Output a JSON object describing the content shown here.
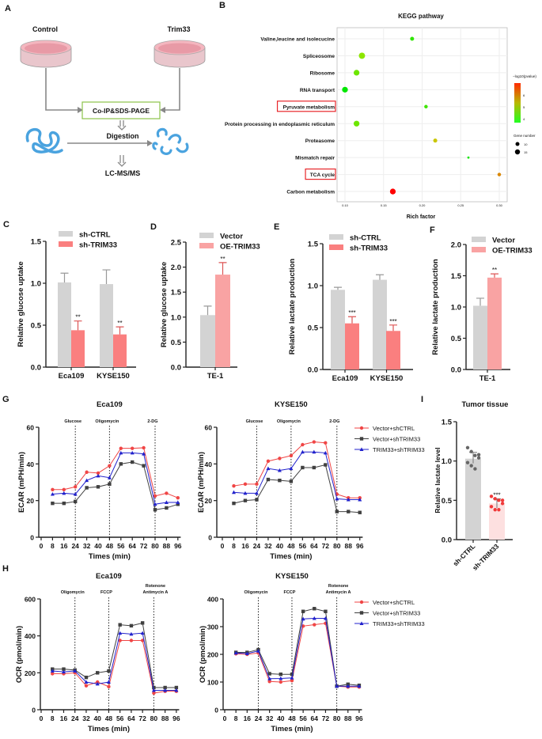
{
  "panel_labels": {
    "A": "A",
    "B": "B",
    "C": "C",
    "D": "D",
    "E": "E",
    "F": "F",
    "G": "G",
    "H": "H",
    "I": "I"
  },
  "panel_a": {
    "control": "Control",
    "trim33": "Trim33",
    "box": "Co-IP&SDS-PAGE",
    "digestion": "Digestion",
    "lcms": "LC-MS/MS"
  },
  "colors": {
    "gray_bar": "#d3d3d3",
    "red_bar": "#fa7f7f",
    "pink_bar": "#f9a3a3",
    "red_line": "#f04545",
    "gray_line": "#404040",
    "blue_line": "#2222cc",
    "highlight": "#e8262a"
  },
  "chart_data": [
    {
      "type": "scatter",
      "title": "KEGG pathway",
      "xlabel": "Rich factor",
      "categories": [
        "Valine,leucine and isolecucine",
        "Spliceosome",
        "Ribosome",
        "RNA transport",
        "Pyruvate metabolism",
        "Protein processing in endoplasmic reticulum",
        "Proteasome",
        "Mismatch repair",
        "TCA cycle",
        "Carbon metabolism"
      ],
      "rich_factor": [
        0.187,
        0.122,
        0.115,
        0.1,
        0.205,
        0.115,
        0.217,
        0.26,
        0.3,
        0.162
      ],
      "neg_log10_pvalue": [
        4.0,
        4.6,
        4.4,
        3.7,
        4.1,
        4.4,
        5.0,
        3.8,
        5.6,
        6.9
      ],
      "gene_number": [
        9,
        14,
        13,
        13,
        8,
        13,
        9,
        5,
        8,
        13
      ],
      "highlighted": [
        "Pyruvate metabolism",
        "TCA cycle"
      ],
      "xlim": [
        0.09,
        0.305
      ],
      "xticks": [
        "0.10",
        "0.15",
        "0.20",
        "0.25",
        "0.30"
      ],
      "color_legend_title": "−log10(pvalue)",
      "color_ticks": [
        "6",
        "5",
        "4"
      ],
      "size_legend_title": "Gene number",
      "size_ticks": [
        "10",
        "15"
      ],
      "grid": true
    },
    {
      "type": "bar",
      "ylabel": "Relative glucose uptake",
      "categories": [
        "Eca109",
        "KYSE150"
      ],
      "ylim": [
        0,
        1.5
      ],
      "yticks": [
        "0.0",
        "0.5",
        "1.0",
        "1.5"
      ],
      "series": [
        {
          "name": "sh-CTRL",
          "values": [
            1.01,
            0.99
          ],
          "errors": [
            0.11,
            0.17
          ]
        },
        {
          "name": "sh-TRIM33",
          "values": [
            0.44,
            0.39
          ],
          "errors": [
            0.11,
            0.09
          ]
        }
      ],
      "significance": [
        "**",
        "**"
      ]
    },
    {
      "type": "bar",
      "ylabel": "Relative glucose uptake",
      "categories": [
        "TE-1"
      ],
      "ylim": [
        0,
        2.5
      ],
      "yticks": [
        "0.0",
        "0.5",
        "1.0",
        "1.5",
        "2.0",
        "2.5"
      ],
      "series": [
        {
          "name": "Vector",
          "values": [
            1.04
          ],
          "errors": [
            0.18
          ]
        },
        {
          "name": "OE-TRIM33",
          "values": [
            1.85
          ],
          "errors": [
            0.24
          ]
        }
      ],
      "significance": [
        "**"
      ]
    },
    {
      "type": "bar",
      "ylabel": "Relative lactate production",
      "categories": [
        "Eca109",
        "KYSE150"
      ],
      "ylim": [
        0,
        1.5
      ],
      "yticks": [
        "0.0",
        "0.5",
        "1.0",
        "1.5"
      ],
      "series": [
        {
          "name": "sh-CTRL",
          "values": [
            0.95,
            1.07
          ],
          "errors": [
            0.03,
            0.06
          ]
        },
        {
          "name": "sh-TRIM33",
          "values": [
            0.55,
            0.46
          ],
          "errors": [
            0.08,
            0.07
          ]
        }
      ],
      "significance": [
        "***",
        "***"
      ]
    },
    {
      "type": "bar",
      "ylabel": "Relative lactate production",
      "categories": [
        "TE-1"
      ],
      "ylim": [
        0,
        2.0
      ],
      "yticks": [
        "0.0",
        "0.5",
        "1.0",
        "1.5",
        "2.0"
      ],
      "series": [
        {
          "name": "Vector",
          "values": [
            1.02
          ],
          "errors": [
            0.12
          ]
        },
        {
          "name": "OE-TRIM33",
          "values": [
            1.47
          ],
          "errors": [
            0.06
          ]
        }
      ],
      "significance": [
        "**"
      ]
    },
    {
      "type": "line",
      "title": "Eca109",
      "xlabel": "Times (min)",
      "ylabel": "ECAR (mPH/min)",
      "ylim": [
        0,
        60
      ],
      "yticks": [
        "0",
        "20",
        "40",
        "60"
      ],
      "xticks": [
        "0",
        "8",
        "16",
        "24",
        "32",
        "40",
        "48",
        "56",
        "64",
        "72",
        "80",
        "88",
        "96"
      ],
      "x": [
        8,
        16,
        24,
        32,
        40,
        48,
        56,
        64,
        72,
        80,
        88,
        96
      ],
      "treatments": [
        {
          "label": "Glucose",
          "time": 24
        },
        {
          "label": "Oligomycin",
          "time": 48
        },
        {
          "label": "2-DG",
          "time": 80
        }
      ],
      "series": [
        {
          "values": [
            26,
            26,
            27.5,
            35.5,
            35,
            39,
            48.5,
            48.5,
            48.8,
            22.5,
            24,
            21.5
          ]
        },
        {
          "values": [
            18.5,
            18.5,
            19.5,
            27,
            27.5,
            29,
            40,
            41,
            39,
            15,
            16,
            18
          ]
        },
        {
          "values": [
            23.5,
            24,
            23.5,
            31,
            33.5,
            32.5,
            46,
            46,
            45.5,
            18,
            19,
            19
          ]
        }
      ]
    },
    {
      "type": "line",
      "title": "KYSE150",
      "xlabel": "Times (min)",
      "ylabel": "ECAR (mPH/min)",
      "ylim": [
        0,
        60
      ],
      "yticks": [
        "0",
        "20",
        "40",
        "60"
      ],
      "xticks": [
        "0",
        "8",
        "16",
        "24",
        "32",
        "40",
        "48",
        "56",
        "64",
        "72",
        "80",
        "88",
        "96"
      ],
      "x": [
        8,
        16,
        24,
        32,
        40,
        48,
        56,
        64,
        72,
        80,
        88,
        96
      ],
      "treatments": [
        {
          "label": "Glucose",
          "time": 24
        },
        {
          "label": "Oligomycin",
          "time": 48
        },
        {
          "label": "2-DG",
          "time": 80
        }
      ],
      "series": [
        {
          "name": "Vector+shCTRL",
          "values": [
            28,
            29,
            29,
            41.5,
            43,
            44.5,
            50.5,
            52,
            51.5,
            23.5,
            21.5,
            21.5
          ]
        },
        {
          "name": "Vector+shTRIM33",
          "values": [
            18.5,
            20,
            20.5,
            31.5,
            31,
            30.5,
            38,
            38,
            39.5,
            14,
            14,
            13.5
          ]
        },
        {
          "name": "TRIM33+shTRIM33",
          "values": [
            24.5,
            24,
            24,
            37.5,
            36.5,
            37.5,
            46.5,
            46.5,
            46,
            21,
            20.5,
            20.5
          ]
        }
      ]
    },
    {
      "type": "line",
      "title": "Eca109",
      "xlabel": "Times (min)",
      "ylabel": "OCR (pmol/min)",
      "ylim": [
        0,
        600
      ],
      "yticks": [
        "0",
        "200",
        "400",
        "600"
      ],
      "xticks": [
        "0",
        "8",
        "16",
        "24",
        "32",
        "40",
        "48",
        "56",
        "64",
        "72",
        "80",
        "88",
        "96"
      ],
      "x": [
        8,
        16,
        24,
        32,
        40,
        48,
        56,
        64,
        72,
        80,
        88,
        96
      ],
      "treatments": [
        {
          "label": "Oligomycin",
          "time": 24
        },
        {
          "label": "FCCP",
          "time": 48
        },
        {
          "label": "Rotenone",
          "label2": "Antimycin A",
          "time": 80
        }
      ],
      "series": [
        {
          "values": [
            195,
            195,
            200,
            130,
            150,
            125,
            375,
            375,
            375,
            90,
            100,
            100
          ]
        },
        {
          "values": [
            220,
            220,
            215,
            175,
            200,
            210,
            460,
            455,
            470,
            120,
            120,
            120
          ]
        },
        {
          "values": [
            210,
            205,
            210,
            150,
            140,
            150,
            415,
            410,
            415,
            105,
            105,
            105
          ]
        }
      ]
    },
    {
      "type": "line",
      "title": "KYSE150",
      "xlabel": "Times (min)",
      "ylabel": "OCR (pmol/min)",
      "ylim": [
        0,
        400
      ],
      "yticks": [
        "0",
        "100",
        "200",
        "300",
        "400"
      ],
      "xticks": [
        "0",
        "8",
        "16",
        "24",
        "32",
        "40",
        "48",
        "56",
        "64",
        "72",
        "80",
        "88",
        "96"
      ],
      "x": [
        8,
        16,
        24,
        32,
        40,
        48,
        56,
        64,
        72,
        80,
        88,
        96
      ],
      "treatments": [
        {
          "label": "Oligomycin",
          "time": 24
        },
        {
          "label": "FCCP",
          "time": 48
        },
        {
          "label": "Rotenone",
          "label2": "Antimycin A",
          "time": 80
        }
      ],
      "series": [
        {
          "name": "Vector+shCTRL",
          "values": [
            202,
            200,
            205,
            102,
            100,
            105,
            302,
            307,
            312,
            85,
            82,
            82
          ]
        },
        {
          "name": "Vector+shTRIM33",
          "values": [
            207,
            207,
            217,
            130,
            128,
            128,
            355,
            365,
            355,
            85,
            92,
            88
          ]
        },
        {
          "name": "TRIM33+shTRIM33",
          "values": [
            205,
            203,
            212,
            112,
            113,
            115,
            328,
            330,
            330,
            85,
            85,
            85
          ]
        }
      ]
    },
    {
      "type": "bar",
      "title": "Tumor tissue",
      "ylabel": "Relative lactate level",
      "categories": [
        "sh-CTRL",
        "sh-TRIM33"
      ],
      "ylim": [
        0,
        1.5
      ],
      "yticks": [
        "0.0",
        "0.5",
        "1.0",
        "1.5"
      ],
      "values": [
        1.03,
        0.46
      ],
      "errors": [
        0.08,
        0.06
      ],
      "points": [
        [
          1.17,
          1.12,
          1.07,
          1.04,
          0.98,
          0.94,
          0.9,
          1.08
        ],
        [
          0.55,
          0.52,
          0.5,
          0.46,
          0.42,
          0.38,
          0.38,
          0.5
        ]
      ],
      "significance": [
        "",
        "***"
      ]
    }
  ]
}
